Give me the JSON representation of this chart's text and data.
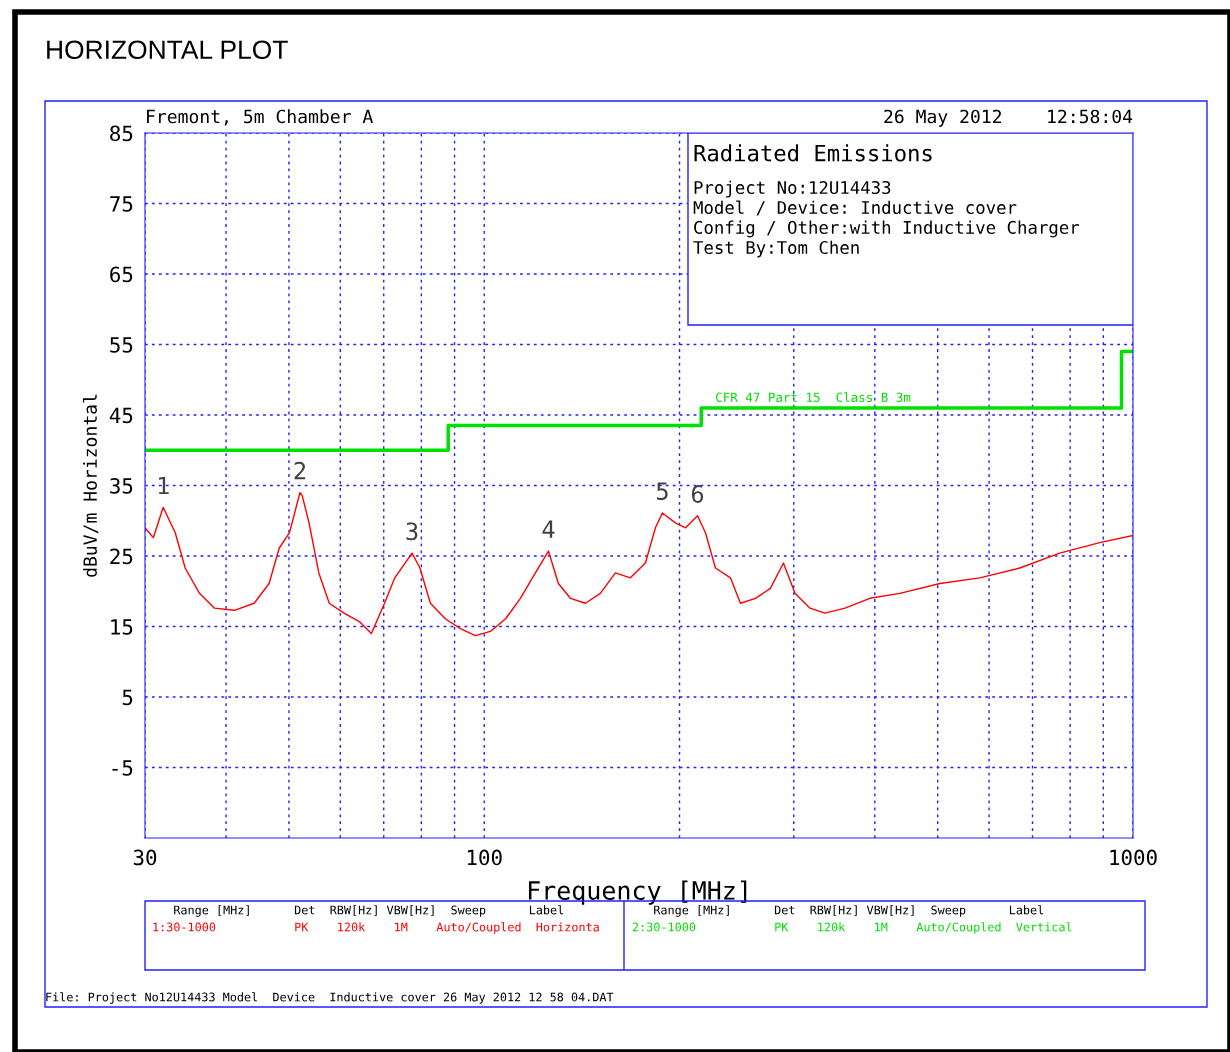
{
  "chart_data": {
    "type": "line",
    "title": "HORIZONTAL PLOT",
    "subtitle": "Fremont, 5m Chamber A",
    "xlabel": "Frequency [MHz]",
    "ylabel": "dBuV/m Horizontal",
    "log": "x",
    "grid": true,
    "legend": false,
    "xlim": [
      30,
      1000
    ],
    "ylim": [
      -15,
      85
    ],
    "xticks": [
      30,
      {
        "value": 40,
        "label": null
      },
      {
        "value": 50,
        "label": null
      },
      {
        "value": 60,
        "label": null
      },
      {
        "value": 70,
        "label": null
      },
      {
        "value": 80,
        "label": null
      },
      {
        "value": 90,
        "label": null
      },
      100,
      {
        "value": 200,
        "label": null
      },
      {
        "value": 300,
        "label": null
      },
      {
        "value": 400,
        "label": null
      },
      {
        "value": 500,
        "label": null
      },
      {
        "value": 600,
        "label": null
      },
      {
        "value": 700,
        "label": null
      },
      {
        "value": 800,
        "label": null
      },
      {
        "value": 900,
        "label": null
      },
      1000
    ],
    "yticks": [
      -5,
      5,
      15,
      25,
      35,
      45,
      55,
      65,
      75,
      85
    ],
    "series": [
      {
        "color": "#ff0000",
        "x": [
          30,
          30.9,
          32.0,
          33.4,
          34.6,
          36.4,
          38.4,
          41.2,
          44.2,
          46.6,
          48.3,
          50.1,
          52.0,
          52.4,
          53.7,
          55.6,
          57.7,
          60.8,
          64.2,
          67.0,
          70.2,
          72.8,
          75.5,
          77.4,
          79.6,
          82.6,
          87.1,
          91.9,
          96.9,
          102.2,
          107.9,
          113.7,
          119.9,
          125.6,
          130.1,
          135.8,
          143.2,
          151.0,
          159.3,
          168.0,
          177.2,
          183.6,
          188.2,
          197.1,
          204.3,
          213.2,
          219.3,
          227.2,
          239.6,
          248.3,
          261.9,
          276.1,
          289.2,
          301.3,
          317.8,
          335.2,
          359.8,
          393.0,
          437.2,
          504.0,
          580.7,
          669.1,
          771.0,
          888.3,
          1000
        ],
        "values": [
          29,
          27.6,
          31.9,
          28.3,
          23.3,
          19.7,
          17.6,
          17.3,
          18.3,
          21.1,
          26.1,
          28.3,
          34,
          33.6,
          29.7,
          22.6,
          18.3,
          16.9,
          15.7,
          14,
          18.3,
          21.9,
          24,
          25.4,
          23.3,
          18.3,
          16.1,
          14.7,
          13.7,
          14.3,
          16.1,
          19,
          22.6,
          25.7,
          21.1,
          19,
          18.3,
          19.7,
          22.6,
          21.9,
          24,
          29,
          31.1,
          29.7,
          29,
          30.7,
          28.3,
          23.3,
          21.9,
          18.3,
          19,
          20.4,
          24,
          19.7,
          17.6,
          16.9,
          17.6,
          19,
          19.7,
          21.1,
          21.9,
          23.3,
          25.4,
          26.9,
          27.9
        ]
      },
      {
        "type": "step",
        "color": "#00e000",
        "x": [
          30,
          88,
          216,
          960,
          1000
        ],
        "values": [
          40,
          43.5,
          46,
          54,
          54
        ]
      }
    ],
    "annotations": [
      {
        "text": "1",
        "x": 32.0,
        "y": 31.9
      },
      {
        "text": "2",
        "x": 52.0,
        "y": 34
      },
      {
        "text": "3",
        "x": 77.4,
        "y": 25.4
      },
      {
        "text": "4",
        "x": 125.6,
        "y": 25.7
      },
      {
        "text": "5",
        "x": 188.2,
        "y": 31.1
      },
      {
        "text": "6",
        "x": 213.2,
        "y": 30.7
      },
      {
        "text": "CFR 47 Part 15  Class B 3m",
        "x": 227,
        "y": 46.5
      },
      "26 May 2012    12:58:04",
      "Radiated Emissions",
      "Project No:12U14433",
      "Model / Device: Inductive cover",
      "Config / Other:with Inductive Charger",
      "Test By:Tom Chen",
      "   Range [MHz]      Det  RBW[Hz] VBW[Hz]  Sweep      Label",
      "1:30-1000           PK    120k    1M    Auto/Coupled  Horizonta",
      "   Range [MHz]      Det  RBW[Hz] VBW[Hz]  Sweep      Label",
      "2:30-1000           PK    120k    1M    Auto/Coupled  Vertical",
      "File: Project No12U14433 Model  Device  Inductive cover 26 May 2012 12 58 04.DAT"
    ]
  }
}
